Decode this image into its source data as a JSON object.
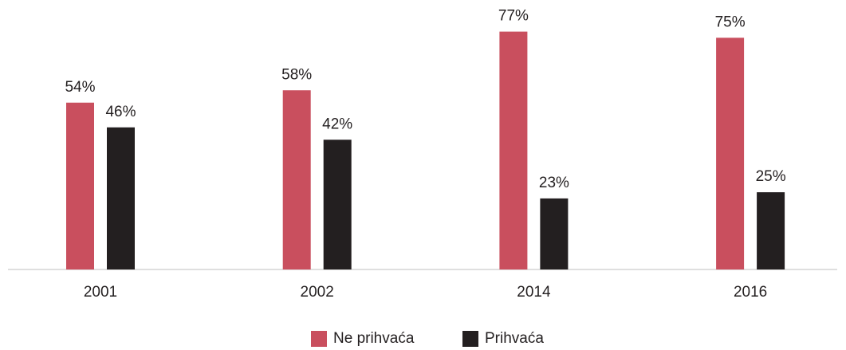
{
  "chart_data": {
    "type": "bar",
    "categories": [
      "2001",
      "2002",
      "2014",
      "2016"
    ],
    "series": [
      {
        "name": "Ne prihvaća",
        "color": "#c94f5e",
        "values": [
          54,
          58,
          77,
          75
        ],
        "value_labels": [
          "54%",
          "58%",
          "77%",
          "75%"
        ]
      },
      {
        "name": "Prihvaća",
        "color": "#231f20",
        "values": [
          46,
          42,
          23,
          25
        ],
        "value_labels": [
          "46%",
          "42%",
          "23%",
          "25%"
        ]
      }
    ],
    "ylim": [
      0,
      80
    ],
    "legend": "bottom"
  }
}
